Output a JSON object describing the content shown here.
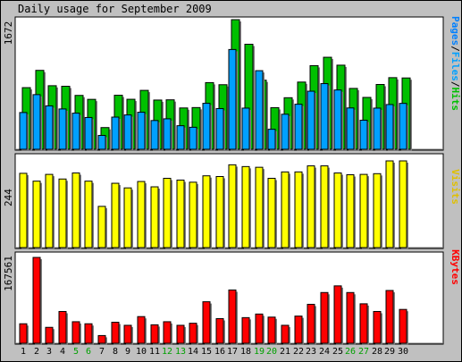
{
  "title": "Daily usage for September 2009",
  "chart_data": [
    {
      "type": "bar",
      "panel": "hits-files-pages",
      "categories": [
        "1",
        "2",
        "3",
        "4",
        "5",
        "6",
        "7",
        "8",
        "9",
        "10",
        "11",
        "12",
        "13",
        "14",
        "15",
        "16",
        "17",
        "18",
        "19",
        "20",
        "21",
        "22",
        "23",
        "24",
        "25",
        "26",
        "27",
        "28",
        "29",
        "30"
      ],
      "ylim": [
        0,
        1672
      ],
      "ylabel": "1672",
      "legend_text": [
        "Pages",
        "/",
        "Files",
        "/",
        "Hits"
      ],
      "series": [
        {
          "name": "Hits",
          "color": "#00c000",
          "values": [
            795,
            1018,
            820,
            813,
            695,
            644,
            280,
            697,
            645,
            760,
            635,
            638,
            533,
            538,
            860,
            833,
            1672,
            1355,
            891,
            537,
            665,
            867,
            1079,
            1187,
            1085,
            785,
            669,
            836,
            924,
            920
          ]
        },
        {
          "name": "Files",
          "color": "#00a0ff",
          "values": [
            474,
            705,
            560,
            520,
            466,
            410,
            179,
            415,
            443,
            478,
            371,
            393,
            304,
            284,
            593,
            525,
            1287,
            531,
            1014,
            258,
            452,
            581,
            749,
            847,
            765,
            533,
            375,
            531,
            577,
            592
          ]
        },
        {
          "name": "Pages",
          "color": "#0080ff",
          "values": [
            430,
            520,
            515,
            470,
            420,
            380,
            150,
            380,
            400,
            440,
            340,
            360,
            280,
            260,
            540,
            480,
            1200,
            480,
            960,
            230,
            410,
            540,
            700,
            790,
            720,
            490,
            340,
            500,
            540,
            560
          ]
        }
      ]
    },
    {
      "type": "bar",
      "panel": "visits",
      "categories": [
        "1",
        "2",
        "3",
        "4",
        "5",
        "6",
        "7",
        "8",
        "9",
        "10",
        "11",
        "12",
        "13",
        "14",
        "15",
        "16",
        "17",
        "18",
        "19",
        "20",
        "21",
        "22",
        "23",
        "24",
        "25",
        "26",
        "27",
        "28",
        "29",
        "30"
      ],
      "ylim": [
        0,
        244
      ],
      "ylabel": "244",
      "legend_text": [
        "Visits"
      ],
      "series": [
        {
          "name": "Visits",
          "color": "#ffff00",
          "values": [
            209,
            187,
            206,
            193,
            210,
            187,
            116,
            181,
            168,
            186,
            171,
            195,
            190,
            184,
            202,
            200,
            233,
            228,
            226,
            195,
            213,
            213,
            230,
            230,
            210,
            205,
            206,
            208,
            244,
            244
          ]
        }
      ]
    },
    {
      "type": "bar",
      "panel": "kbytes",
      "categories": [
        "1",
        "2",
        "3",
        "4",
        "5",
        "6",
        "7",
        "8",
        "9",
        "10",
        "11",
        "12",
        "13",
        "14",
        "15",
        "16",
        "17",
        "18",
        "19",
        "20",
        "21",
        "22",
        "23",
        "24",
        "25",
        "26",
        "27",
        "28",
        "29",
        "30"
      ],
      "ylim": [
        0,
        167561
      ],
      "ylabel": "167561",
      "legend_text": [
        "KBytes"
      ],
      "series": [
        {
          "name": "KBytes",
          "color": "#ff0000",
          "values": [
            38000,
            167561,
            31000,
            62000,
            42000,
            38000,
            15000,
            41000,
            35000,
            52000,
            36000,
            42000,
            35000,
            39000,
            81000,
            48000,
            104000,
            50000,
            57000,
            51000,
            35000,
            53000,
            76000,
            99000,
            112000,
            99000,
            77000,
            62000,
            103000,
            66000
          ]
        }
      ]
    }
  ],
  "x_axis": {
    "days": [
      "1",
      "2",
      "3",
      "4",
      "5",
      "6",
      "7",
      "8",
      "9",
      "10",
      "11",
      "12",
      "13",
      "14",
      "15",
      "16",
      "17",
      "18",
      "19",
      "20",
      "21",
      "22",
      "23",
      "24",
      "25",
      "26",
      "27",
      "28",
      "29",
      "30"
    ],
    "weekend_days": [
      "5",
      "6",
      "12",
      "13",
      "19",
      "20",
      "26",
      "27"
    ],
    "weekday_color": "#000000",
    "weekend_color": "#00a000"
  },
  "colors": {
    "background": "#c0c0c0",
    "panel": "#ffffff",
    "hits": "#00c000",
    "files": "#00a0ff",
    "visits": "#ffff00",
    "kbytes": "#ff0000"
  }
}
